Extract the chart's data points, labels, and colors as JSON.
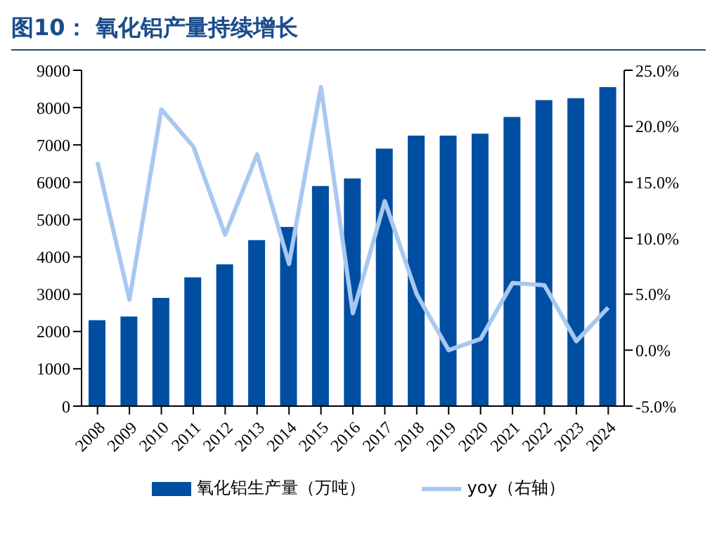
{
  "chart_data": {
    "type": "bar",
    "title": "图10：  氧化铝产量持续增长",
    "categories": [
      "2008",
      "2009",
      "2010",
      "2011",
      "2012",
      "2013",
      "2014",
      "2015",
      "2016",
      "2017",
      "2018",
      "2019",
      "2020",
      "2021",
      "2022",
      "2023",
      "2024"
    ],
    "series": [
      {
        "name": "氧化铝生产量（万吨）",
        "color": "#004ea2",
        "values": [
          2300,
          2400,
          2900,
          3450,
          3800,
          4450,
          4800,
          5900,
          6100,
          6900,
          7250,
          7250,
          7300,
          7750,
          8200,
          8250,
          8550
        ]
      },
      {
        "name": "yoy（右轴）",
        "type": "line",
        "axis": "y2",
        "color": "#a9c8f0",
        "values": [
          16.8,
          4.5,
          21.5,
          18.2,
          10.3,
          17.5,
          7.7,
          23.5,
          3.3,
          13.3,
          5.0,
          0.0,
          1.0,
          6.0,
          5.8,
          0.8,
          3.8
        ]
      }
    ],
    "ylim": [
      0,
      9000
    ],
    "yticks": [
      0,
      1000,
      2000,
      3000,
      4000,
      5000,
      6000,
      7000,
      8000,
      9000
    ],
    "y2lim": [
      -5,
      25
    ],
    "y2ticks": [
      {
        "value": -5,
        "label": "-5.0%"
      },
      {
        "value": 0,
        "label": "0.0%"
      },
      {
        "value": 5,
        "label": "5.0%"
      },
      {
        "value": 10,
        "label": "10.0%"
      },
      {
        "value": 15,
        "label": "15.0%"
      },
      {
        "value": 20,
        "label": "20.0%"
      },
      {
        "value": 25,
        "label": "25.0%"
      }
    ],
    "legend": "bottom",
    "grid": false,
    "marker": "none"
  }
}
